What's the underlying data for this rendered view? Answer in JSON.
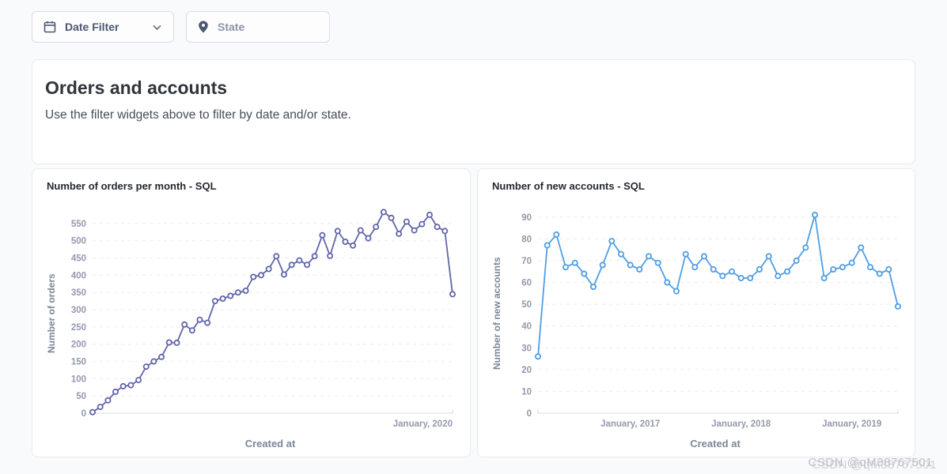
{
  "filters": {
    "date": {
      "label": "Date Filter",
      "icon": "calendar-icon",
      "chevron": "chevron-down-icon"
    },
    "state": {
      "label": "State",
      "icon": "location-pin-icon"
    }
  },
  "header": {
    "title": "Orders and accounts",
    "subtitle": "Use the filter widgets above to filter by date and/or state."
  },
  "colors": {
    "orders_line": "#6266A8",
    "accounts_line": "#509EE3",
    "axis_tick_label": "#949AAB",
    "axis_title": "#7C8799",
    "gridline": "#E9EBEE",
    "card_border": "#E8EBED",
    "page_background": "#F8FAFB"
  },
  "watermark": {
    "text": "CSDN @qM38767501"
  },
  "chart_data": [
    {
      "type": "line",
      "title": "Number of orders per month - SQL",
      "xlabel": "Created at",
      "ylabel": "Number of orders",
      "color": "#6266A8",
      "ylim": [
        0,
        600
      ],
      "ytick_step": 50,
      "ytick_top": 550,
      "grid": "dashed-horizontal",
      "x_tick_labels": [
        {
          "label": "January, 2020",
          "index": 47,
          "anchor": "end"
        }
      ],
      "values": [
        3,
        18,
        37,
        62,
        78,
        81,
        96,
        135,
        150,
        163,
        205,
        204,
        257,
        240,
        271,
        262,
        325,
        332,
        340,
        350,
        355,
        395,
        400,
        418,
        455,
        402,
        430,
        443,
        430,
        455,
        516,
        456,
        528,
        497,
        486,
        530,
        507,
        540,
        583,
        566,
        520,
        555,
        530,
        548,
        575,
        540,
        528,
        345
      ]
    },
    {
      "type": "line",
      "title": "Number of new accounts - SQL",
      "xlabel": "Created at",
      "ylabel": "Number of new accounts",
      "color": "#509EE3",
      "ylim": [
        0,
        95
      ],
      "ytick_step": 10,
      "ytick_top": 90,
      "grid": "dashed-horizontal",
      "x_tick_labels": [
        {
          "label": "January, 2017",
          "index": 10,
          "anchor": "middle"
        },
        {
          "label": "January, 2018",
          "index": 22,
          "anchor": "middle"
        },
        {
          "label": "January, 2019",
          "index": 34,
          "anchor": "middle"
        }
      ],
      "values": [
        26,
        77,
        82,
        67,
        69,
        64,
        58,
        68,
        79,
        73,
        68,
        66,
        72,
        69,
        60,
        56,
        73,
        67,
        72,
        66,
        63,
        65,
        62,
        62,
        66,
        72,
        63,
        65,
        70,
        76,
        91,
        62,
        66,
        67,
        69,
        76,
        67,
        64,
        66,
        49
      ]
    }
  ]
}
